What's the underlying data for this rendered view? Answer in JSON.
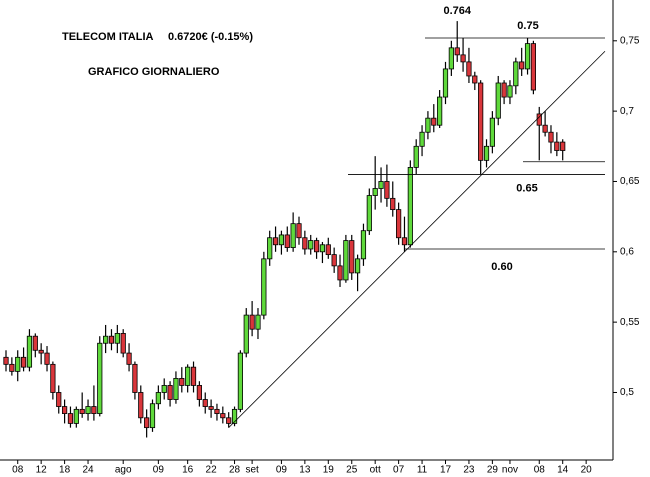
{
  "chart_data": {
    "type": "candlestick",
    "title": "TELECOM ITALIA",
    "price_label": "0.6720€ (-0.15%)",
    "subtitle": "GRAFICO GIORNALIERO",
    "up_color": "#5fd93b",
    "down_color": "#d9363b",
    "categories": [
      null,
      null,
      "08",
      null,
      null,
      null,
      "12",
      null,
      null,
      null,
      "18",
      null,
      null,
      null,
      "24",
      null,
      null,
      null,
      null,
      null,
      "ago",
      null,
      null,
      null,
      null,
      null,
      "09",
      null,
      null,
      null,
      null,
      "16",
      null,
      null,
      null,
      "22",
      null,
      null,
      null,
      "28",
      null,
      null,
      "set",
      null,
      null,
      null,
      null,
      "09",
      null,
      null,
      null,
      "13",
      null,
      null,
      null,
      "19",
      null,
      null,
      null,
      "25",
      null,
      null,
      null,
      "ott",
      null,
      null,
      null,
      "07",
      null,
      null,
      null,
      "11",
      null,
      null,
      null,
      "17",
      null,
      null,
      null,
      "23",
      null,
      null,
      null,
      "29",
      null,
      null,
      "nov",
      null,
      null,
      null,
      null,
      "08",
      null,
      null,
      null,
      "14",
      null,
      null,
      null,
      "20"
    ],
    "ohlc": [
      [
        0.525,
        0.53,
        0.515,
        0.52
      ],
      [
        0.52,
        0.525,
        0.512,
        0.515
      ],
      [
        0.515,
        0.53,
        0.508,
        0.525
      ],
      [
        0.525,
        0.532,
        0.515,
        0.518
      ],
      [
        0.518,
        0.545,
        0.515,
        0.54
      ],
      [
        0.54,
        0.542,
        0.525,
        0.53
      ],
      [
        0.53,
        0.535,
        0.52,
        0.528
      ],
      [
        0.528,
        0.533,
        0.515,
        0.52
      ],
      [
        0.52,
        0.522,
        0.495,
        0.5
      ],
      [
        0.5,
        0.505,
        0.485,
        0.49
      ],
      [
        0.49,
        0.495,
        0.478,
        0.485
      ],
      [
        0.485,
        0.49,
        0.475,
        0.478
      ],
      [
        0.478,
        0.49,
        0.475,
        0.488
      ],
      [
        0.488,
        0.5,
        0.482,
        0.485
      ],
      [
        0.485,
        0.495,
        0.48,
        0.49
      ],
      [
        0.49,
        0.505,
        0.48,
        0.485
      ],
      [
        0.485,
        0.54,
        0.483,
        0.535
      ],
      [
        0.535,
        0.548,
        0.528,
        0.54
      ],
      [
        0.54,
        0.545,
        0.53,
        0.535
      ],
      [
        0.535,
        0.548,
        0.528,
        0.542
      ],
      [
        0.542,
        0.545,
        0.525,
        0.528
      ],
      [
        0.528,
        0.535,
        0.515,
        0.52
      ],
      [
        0.52,
        0.522,
        0.495,
        0.5
      ],
      [
        0.5,
        0.505,
        0.478,
        0.482
      ],
      [
        0.482,
        0.488,
        0.468,
        0.475
      ],
      [
        0.475,
        0.495,
        0.472,
        0.492
      ],
      [
        0.492,
        0.505,
        0.488,
        0.5
      ],
      [
        0.5,
        0.51,
        0.495,
        0.505
      ],
      [
        0.505,
        0.508,
        0.49,
        0.495
      ],
      [
        0.495,
        0.515,
        0.492,
        0.51
      ],
      [
        0.51,
        0.518,
        0.5,
        0.505
      ],
      [
        0.505,
        0.52,
        0.5,
        0.518
      ],
      [
        0.518,
        0.522,
        0.5,
        0.505
      ],
      [
        0.505,
        0.508,
        0.49,
        0.495
      ],
      [
        0.495,
        0.5,
        0.485,
        0.49
      ],
      [
        0.49,
        0.495,
        0.482,
        0.488
      ],
      [
        0.488,
        0.492,
        0.48,
        0.485
      ],
      [
        0.485,
        0.49,
        0.478,
        0.482
      ],
      [
        0.482,
        0.486,
        0.475,
        0.478
      ],
      [
        0.478,
        0.49,
        0.476,
        0.488
      ],
      [
        0.488,
        0.53,
        0.486,
        0.528
      ],
      [
        0.528,
        0.56,
        0.525,
        0.555
      ],
      [
        0.555,
        0.565,
        0.54,
        0.545
      ],
      [
        0.545,
        0.56,
        0.538,
        0.555
      ],
      [
        0.555,
        0.6,
        0.552,
        0.595
      ],
      [
        0.595,
        0.615,
        0.59,
        0.61
      ],
      [
        0.61,
        0.618,
        0.6,
        0.605
      ],
      [
        0.605,
        0.615,
        0.598,
        0.612
      ],
      [
        0.612,
        0.618,
        0.6,
        0.603
      ],
      [
        0.603,
        0.628,
        0.6,
        0.62
      ],
      [
        0.62,
        0.625,
        0.605,
        0.61
      ],
      [
        0.61,
        0.615,
        0.598,
        0.602
      ],
      [
        0.602,
        0.612,
        0.598,
        0.608
      ],
      [
        0.608,
        0.61,
        0.595,
        0.6
      ],
      [
        0.6,
        0.607,
        0.592,
        0.605
      ],
      [
        0.605,
        0.61,
        0.595,
        0.598
      ],
      [
        0.598,
        0.603,
        0.585,
        0.59
      ],
      [
        0.59,
        0.598,
        0.575,
        0.58
      ],
      [
        0.58,
        0.612,
        0.578,
        0.608
      ],
      [
        0.608,
        0.612,
        0.58,
        0.585
      ],
      [
        0.585,
        0.598,
        0.572,
        0.595
      ],
      [
        0.595,
        0.62,
        0.59,
        0.615
      ],
      [
        0.615,
        0.645,
        0.612,
        0.64
      ],
      [
        0.64,
        0.668,
        0.63,
        0.645
      ],
      [
        0.645,
        0.66,
        0.635,
        0.65
      ],
      [
        0.65,
        0.662,
        0.632,
        0.638
      ],
      [
        0.638,
        0.65,
        0.625,
        0.63
      ],
      [
        0.63,
        0.635,
        0.605,
        0.61
      ],
      [
        0.61,
        0.625,
        0.6,
        0.605
      ],
      [
        0.605,
        0.665,
        0.603,
        0.66
      ],
      [
        0.66,
        0.68,
        0.655,
        0.675
      ],
      [
        0.675,
        0.69,
        0.668,
        0.685
      ],
      [
        0.685,
        0.7,
        0.68,
        0.695
      ],
      [
        0.695,
        0.705,
        0.685,
        0.69
      ],
      [
        0.69,
        0.715,
        0.688,
        0.71
      ],
      [
        0.71,
        0.735,
        0.705,
        0.73
      ],
      [
        0.73,
        0.75,
        0.725,
        0.745
      ],
      [
        0.745,
        0.764,
        0.735,
        0.74
      ],
      [
        0.74,
        0.752,
        0.728,
        0.735
      ],
      [
        0.735,
        0.745,
        0.72,
        0.725
      ],
      [
        0.725,
        0.728,
        0.715,
        0.72
      ],
      [
        0.72,
        0.722,
        0.655,
        0.665
      ],
      [
        0.665,
        0.68,
        0.66,
        0.675
      ],
      [
        0.675,
        0.7,
        0.67,
        0.695
      ],
      [
        0.695,
        0.725,
        0.69,
        0.72
      ],
      [
        0.72,
        0.722,
        0.705,
        0.71
      ],
      [
        0.71,
        0.722,
        0.705,
        0.718
      ],
      [
        0.718,
        0.738,
        0.712,
        0.735
      ],
      [
        0.735,
        0.745,
        0.725,
        0.73
      ],
      [
        0.73,
        0.752,
        0.726,
        0.748
      ],
      [
        0.748,
        0.75,
        0.712,
        0.715
      ],
      [
        0.698,
        0.703,
        0.665,
        0.69
      ],
      [
        0.69,
        0.7,
        0.682,
        0.685
      ],
      [
        0.685,
        0.69,
        0.67,
        0.678
      ],
      [
        0.678,
        0.685,
        0.668,
        0.672
      ],
      [
        0.678,
        0.68,
        0.665,
        0.672
      ],
      null,
      null,
      null,
      null
    ],
    "high_label": "0.764",
    "levels": [
      {
        "value": 0.752,
        "label": "0.75"
      },
      {
        "value": 0.655,
        "label": "0.65"
      },
      {
        "value": 0.602,
        "label": "0.60"
      },
      {
        "value": 0.664
      }
    ],
    "ylim": [
      0.452,
      0.779
    ],
    "yticks": [
      {
        "value": 0.5,
        "label": "0,5"
      },
      {
        "value": 0.55,
        "label": "0,55"
      },
      {
        "value": 0.6,
        "label": "0,6"
      },
      {
        "value": 0.65,
        "label": "0,65"
      },
      {
        "value": 0.7,
        "label": "0,7"
      },
      {
        "value": 0.75,
        "label": "0,75"
      }
    ]
  }
}
